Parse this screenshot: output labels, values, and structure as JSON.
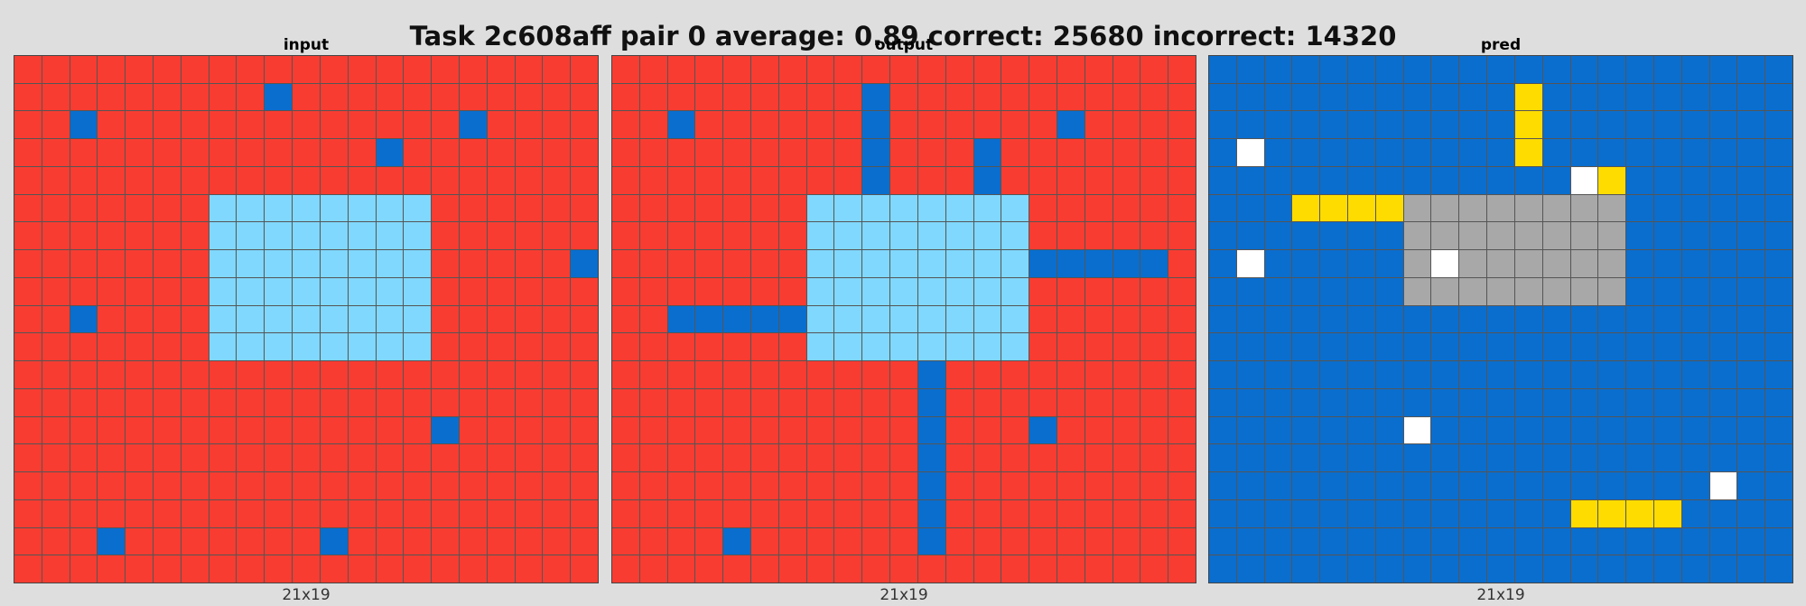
{
  "title": "Task 2c608aff pair 0 average: 0.89 correct: 25680 incorrect: 14320",
  "palette": {
    "2": "#f93c31",
    "1": "#1e93ff",
    "8": "#87d8f1",
    "0": "#ffffff",
    "4": "#ffdc00",
    "5": "#999999",
    "b": "#0a6ecf",
    "l": "#80d8ff",
    "g": "#a8a8a8",
    "w": "#ffffff",
    "y": "#ffdc00"
  },
  "panels": [
    {
      "label": "input",
      "size_label": "21x19",
      "rows": [
        "222222222222222222222",
        "222222222b22222222222",
        "22b2222222222222b2222",
        "2222222222222b2222222",
        "222222222222222222222",
        "2222222llllllll222222",
        "2222222llllllll222222",
        "2222222llllllll22222b",
        "2222222llllllll222222",
        "22b2222llllllll222222",
        "2222222llllllll222222",
        "222222222222222222222",
        "222222222222222222222",
        "222222222222222b22222",
        "222222222222222222222",
        "222222222222222222222",
        "222222222222222222222",
        "222b2222222b222222222",
        "222222222222222222222"
      ]
    },
    {
      "label": "output",
      "size_label": "21x19",
      "rows": [
        "222222222222222222222",
        "222222222b22222222222",
        "22b222222b222222b2222",
        "222222222b222b2222222",
        "222222222b222b2222222",
        "2222222llllllll222222",
        "2222222llllllll222222",
        "2222222llllllllbbbbb2",
        "2222222llllllll222222",
        "22bbbbbllllllll222222",
        "2222222llllllll222222",
        "22222222222b222222222",
        "22222222222b222222222",
        "22222222222b222b22222",
        "22222222222b222222222",
        "22222222222b222222222",
        "22222222222b222222222",
        "2222b222222b222222222",
        "222222222222222222222"
      ]
    },
    {
      "label": "pred",
      "size_label": "21x19",
      "rows": [
        "bbbbbbbbbbbbbbbbbbbbb",
        "bbbbbbbbbbbbbbbbbbbbb",
        "bbbbbbbbbbbbbbbbbbbbb",
        "bbbbbbbbbbbbbbbbbbbbb",
        "bbbbbbbbbbbbbbbbbbbbb",
        "bbbbbbbbbbbbbbbbbbbbb",
        "bbbbbbbbbbbbbbbbbbbbb",
        "bbbbbbbbbbbbbbbbbbbbb",
        "bbbbbbbbbbbbbbbbbbbbb",
        "bbbbbbbbbbbbbbbbbbbbb",
        "bbbbbbbbbbbbbbbbbbbbb",
        "bbbbbbbbbbbbbbbbbbbbb",
        "bbbbbbbbbbbbbbbbbbbbb",
        "bbbbbbbbbbbbbbbbbbbbb",
        "bbbbbbbbbbbbbbbbbbbbb",
        "bbbbbbbbbbbbbbbbbbbbb",
        "bbbbbbbbbbbbbbbbbbbbb",
        "bbbbbbbbbbbbbbbbbbbbb",
        "bbbbbbbbbbbbbbbbbbbbb"
      ],
      "overrides": [
        [
          1,
          11,
          "y"
        ],
        [
          2,
          11,
          "y"
        ],
        [
          3,
          11,
          "y"
        ],
        [
          3,
          1,
          "w"
        ],
        [
          4,
          13,
          "w"
        ],
        [
          4,
          14,
          "y"
        ],
        [
          5,
          3,
          "y"
        ],
        [
          5,
          4,
          "y"
        ],
        [
          5,
          5,
          "y"
        ],
        [
          5,
          6,
          "y"
        ],
        [
          5,
          7,
          "g"
        ],
        [
          5,
          8,
          "g"
        ],
        [
          5,
          9,
          "g"
        ],
        [
          5,
          10,
          "g"
        ],
        [
          5,
          11,
          "g"
        ],
        [
          5,
          12,
          "g"
        ],
        [
          5,
          13,
          "g"
        ],
        [
          5,
          14,
          "g"
        ],
        [
          6,
          7,
          "g"
        ],
        [
          6,
          8,
          "g"
        ],
        [
          6,
          9,
          "g"
        ],
        [
          6,
          10,
          "g"
        ],
        [
          6,
          11,
          "g"
        ],
        [
          6,
          12,
          "g"
        ],
        [
          6,
          13,
          "g"
        ],
        [
          6,
          14,
          "g"
        ],
        [
          7,
          1,
          "w"
        ],
        [
          7,
          7,
          "g"
        ],
        [
          7,
          8,
          "w"
        ],
        [
          7,
          9,
          "g"
        ],
        [
          7,
          10,
          "g"
        ],
        [
          7,
          11,
          "g"
        ],
        [
          7,
          12,
          "g"
        ],
        [
          7,
          13,
          "g"
        ],
        [
          7,
          14,
          "g"
        ],
        [
          8,
          7,
          "g"
        ],
        [
          8,
          8,
          "g"
        ],
        [
          8,
          9,
          "g"
        ],
        [
          8,
          10,
          "g"
        ],
        [
          8,
          11,
          "g"
        ],
        [
          8,
          12,
          "g"
        ],
        [
          8,
          13,
          "g"
        ],
        [
          8,
          14,
          "g"
        ],
        [
          13,
          7,
          "w"
        ],
        [
          15,
          18,
          "w"
        ],
        [
          16,
          13,
          "y"
        ],
        [
          16,
          14,
          "y"
        ],
        [
          16,
          15,
          "y"
        ],
        [
          16,
          16,
          "y"
        ]
      ]
    }
  ]
}
